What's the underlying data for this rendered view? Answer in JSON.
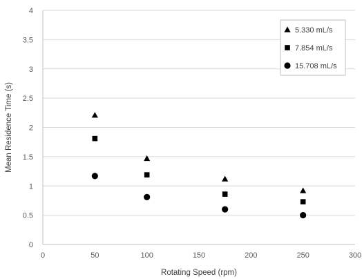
{
  "chart_data": {
    "type": "scatter",
    "title": "",
    "xlabel": "Rotating Speed (rpm)",
    "ylabel": "Mean Residence Time (s)",
    "xlim": [
      0,
      300
    ],
    "ylim": [
      0,
      4
    ],
    "xticks": [
      0,
      50,
      100,
      150,
      200,
      250,
      300
    ],
    "yticks": [
      0,
      0.5,
      1,
      1.5,
      2,
      2.5,
      3,
      3.5,
      4
    ],
    "xtick_labels": [
      "0",
      "50",
      "100",
      "150",
      "200",
      "250",
      "300"
    ],
    "ytick_labels": [
      "0",
      "0.5",
      "1",
      "1.5",
      "2",
      "2.5",
      "3",
      "3.5",
      "4"
    ],
    "grid": "horizontal",
    "legend_position": "top-right",
    "series": [
      {
        "name": "5.330 mL/s",
        "marker": "triangle",
        "color": "#000000",
        "x": [
          50,
          100,
          175,
          250
        ],
        "y": [
          2.21,
          1.47,
          1.12,
          0.92
        ]
      },
      {
        "name": "7.854 mL/s",
        "marker": "square",
        "color": "#000000",
        "x": [
          50,
          100,
          175,
          250
        ],
        "y": [
          1.81,
          1.19,
          0.86,
          0.73
        ]
      },
      {
        "name": "15.708 mL/s",
        "marker": "circle",
        "color": "#000000",
        "x": [
          50,
          100,
          175,
          250
        ],
        "y": [
          1.17,
          0.81,
          0.6,
          0.5
        ]
      }
    ]
  }
}
